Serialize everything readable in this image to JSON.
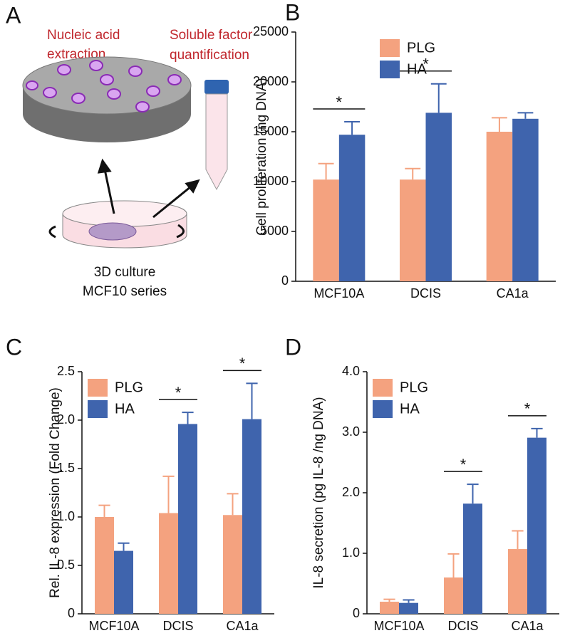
{
  "diagram": {
    "panel_label": "A",
    "labels": [
      [
        "Nucleic acid",
        "extraction"
      ],
      [
        "Soluble factor",
        "quantification"
      ],
      [
        "3D culture",
        "MCF10 series"
      ]
    ]
  },
  "chart_data": [
    {
      "type": "bar",
      "panel_label": "B",
      "y_label": "Cell proliferation (ng DNA)",
      "categories": [
        "MCF10A",
        "DCIS",
        "CA1a"
      ],
      "series": [
        {
          "name": "PLG",
          "color": "#f4a27f",
          "values": [
            10200,
            10200,
            15000
          ],
          "errors": [
            1600,
            1100,
            1400
          ]
        },
        {
          "name": "HA",
          "color": "#3f64ad",
          "values": [
            14700,
            16900,
            16300
          ],
          "errors": [
            1300,
            2900,
            600
          ]
        }
      ],
      "significance": [
        "*",
        "*",
        null
      ],
      "ylim": [
        0,
        25000
      ],
      "yticks": [
        0,
        5000,
        10000,
        15000,
        20000,
        25000
      ],
      "legend": "upper center"
    },
    {
      "type": "bar",
      "panel_label": "C",
      "y_label": "Rel. IL-8 expression  (Fold Change)",
      "categories": [
        "MCF10A",
        "DCIS",
        "CA1a"
      ],
      "series": [
        {
          "name": "PLG",
          "color": "#f4a27f",
          "values": [
            1.0,
            1.04,
            1.02
          ],
          "errors": [
            0.12,
            0.38,
            0.22
          ]
        },
        {
          "name": "HA",
          "color": "#3f64ad",
          "values": [
            0.65,
            1.96,
            2.01
          ],
          "errors": [
            0.08,
            0.12,
            0.37
          ]
        }
      ],
      "significance": [
        null,
        "*",
        "*"
      ],
      "ylim": [
        0,
        2.5
      ],
      "yticks": [
        0,
        0.5,
        {
          "value": 1,
          "label": "1.0"
        },
        1.5,
        {
          "value": 2,
          "label": "2.0"
        },
        2.5
      ],
      "legend": "upper left"
    },
    {
      "type": "bar",
      "panel_label": "D",
      "y_label": "IL-8 secretion (pg IL-8 /ng DNA)",
      "categories": [
        "MCF10A",
        "DCIS",
        "CA1a"
      ],
      "series": [
        {
          "name": "PLG",
          "color": "#f4a27f",
          "values": [
            0.2,
            0.6,
            1.07
          ],
          "errors": [
            0.04,
            0.39,
            0.3
          ]
        },
        {
          "name": "HA",
          "color": "#3f64ad",
          "values": [
            0.18,
            1.82,
            2.91
          ],
          "errors": [
            0.05,
            0.32,
            0.15
          ]
        }
      ],
      "significance": [
        null,
        "*",
        "*"
      ],
      "ylim": [
        0,
        4
      ],
      "yticks": [
        0,
        {
          "value": 1,
          "label": "1.0"
        },
        {
          "value": 2,
          "label": "2.0"
        },
        {
          "value": 3,
          "label": "3.0"
        },
        {
          "value": 4,
          "label": "4.0"
        }
      ],
      "legend": "upper left"
    }
  ]
}
